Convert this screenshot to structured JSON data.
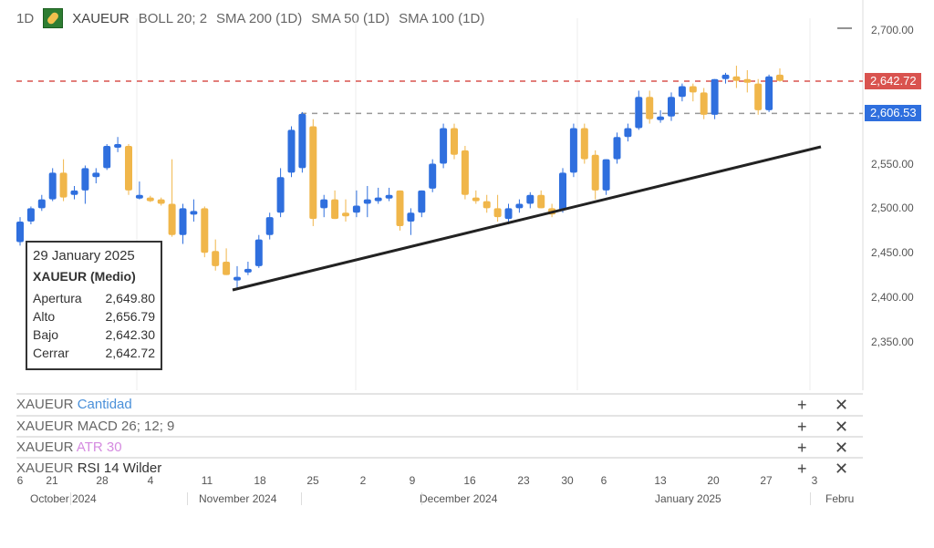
{
  "header": {
    "interval": "1D",
    "symbol": "XAUEUR",
    "indicators": [
      "BOLL 20; 2",
      "SMA 200 (1D)",
      "SMA 50 (1D)",
      "SMA 100 (1D)"
    ],
    "collapse_label": "—"
  },
  "tooltip": {
    "date": "29 January 2025",
    "series": "XAUEUR (Medio)",
    "rows": [
      {
        "label": "Apertura",
        "value": "2,649.80"
      },
      {
        "label": "Alto",
        "value": "2,656.79"
      },
      {
        "label": "Bajo",
        "value": "2,642.30"
      },
      {
        "label": "Cerrar",
        "value": "2,642.72"
      }
    ]
  },
  "price_badges": {
    "last": "2,642.72",
    "level": "2,606.53"
  },
  "panes": [
    {
      "symbol": "XAUEUR",
      "name": "Cantidad"
    },
    {
      "symbol": "XAUEUR",
      "name": "MACD 26; 12; 9"
    },
    {
      "symbol": "XAUEUR",
      "name": "ATR 30"
    },
    {
      "symbol": "XAUEUR",
      "name": "RSI 14 Wilder"
    }
  ],
  "pane_buttons": {
    "add": "+",
    "close": "✕"
  },
  "colors": {
    "up": "#2f6fde",
    "down": "#f0b64a",
    "last_line": "#d9534f",
    "level_line": "#999999",
    "badge_last": "#d9534f",
    "badge_level": "#2f6fde"
  },
  "chart_data": {
    "type": "candlestick",
    "yaxis": {
      "ticks": [
        "2,700.00",
        "2,550.00",
        "2,500.00",
        "2,450.00",
        "2,400.00",
        "2,350.00"
      ],
      "ylim": [
        2350,
        2700
      ]
    },
    "xaxis": {
      "day_ticks": [
        "6",
        "21",
        "28",
        "4",
        "11",
        "18",
        "25",
        "2",
        "9",
        "16",
        "23",
        "30",
        "6",
        "13",
        "20",
        "27",
        "3"
      ],
      "months": [
        "October 2024",
        "November 2024",
        "December 2024",
        "January 2025",
        "Febru"
      ]
    },
    "horizontal_lines": [
      2642.72,
      2606.53
    ],
    "trendline": {
      "from": 2410,
      "to": 2567
    },
    "ohlc": [
      [
        2462,
        2490,
        2458,
        2485
      ],
      [
        2485,
        2502,
        2482,
        2500
      ],
      [
        2500,
        2515,
        2497,
        2510
      ],
      [
        2510,
        2545,
        2508,
        2540
      ],
      [
        2540,
        2555,
        2508,
        2512
      ],
      [
        2515,
        2525,
        2510,
        2520
      ],
      [
        2520,
        2548,
        2505,
        2545
      ],
      [
        2535,
        2545,
        2528,
        2540
      ],
      [
        2545,
        2572,
        2543,
        2570
      ],
      [
        2568,
        2580,
        2563,
        2572
      ],
      [
        2570,
        2572,
        2515,
        2520
      ],
      [
        2512,
        2530,
        2510,
        2515
      ],
      [
        2512,
        2514,
        2507,
        2510
      ],
      [
        2510,
        2512,
        2503,
        2505
      ],
      [
        2505,
        2555,
        2468,
        2470
      ],
      [
        2470,
        2505,
        2460,
        2500
      ],
      [
        2495,
        2510,
        2485,
        2497
      ],
      [
        2500,
        2502,
        2445,
        2450
      ],
      [
        2452,
        2465,
        2430,
        2435
      ],
      [
        2440,
        2455,
        2425,
        2425
      ],
      [
        2422,
        2435,
        2410,
        2423
      ],
      [
        2430,
        2440,
        2425,
        2432
      ],
      [
        2435,
        2470,
        2433,
        2465
      ],
      [
        2470,
        2495,
        2465,
        2490
      ],
      [
        2495,
        2545,
        2490,
        2535
      ],
      [
        2540,
        2592,
        2535,
        2588
      ],
      [
        2545,
        2608,
        2540,
        2606
      ],
      [
        2592,
        2600,
        2480,
        2488
      ],
      [
        2500,
        2515,
        2490,
        2510
      ],
      [
        2510,
        2520,
        2488,
        2488
      ],
      [
        2495,
        2510,
        2485,
        2492
      ],
      [
        2495,
        2520,
        2490,
        2503
      ],
      [
        2505,
        2525,
        2490,
        2510
      ],
      [
        2510,
        2523,
        2505,
        2512
      ],
      [
        2512,
        2523,
        2508,
        2515
      ],
      [
        2520,
        2520,
        2475,
        2480
      ],
      [
        2485,
        2500,
        2470,
        2495
      ],
      [
        2495,
        2520,
        2490,
        2520
      ],
      [
        2522,
        2555,
        2518,
        2550
      ],
      [
        2550,
        2595,
        2545,
        2590
      ],
      [
        2590,
        2595,
        2555,
        2560
      ],
      [
        2565,
        2570,
        2510,
        2515
      ],
      [
        2512,
        2520,
        2505,
        2508
      ],
      [
        2508,
        2515,
        2495,
        2500
      ],
      [
        2500,
        2515,
        2485,
        2490
      ],
      [
        2488,
        2505,
        2482,
        2500
      ],
      [
        2500,
        2510,
        2495,
        2505
      ],
      [
        2505,
        2518,
        2500,
        2515
      ],
      [
        2515,
        2520,
        2500,
        2500
      ],
      [
        2500,
        2505,
        2490,
        2493
      ],
      [
        2498,
        2545,
        2495,
        2540
      ],
      [
        2540,
        2595,
        2535,
        2590
      ],
      [
        2590,
        2595,
        2550,
        2555
      ],
      [
        2560,
        2565,
        2510,
        2520
      ],
      [
        2520,
        2555,
        2515,
        2555
      ],
      [
        2555,
        2585,
        2550,
        2580
      ],
      [
        2580,
        2595,
        2575,
        2590
      ],
      [
        2590,
        2632,
        2588,
        2625
      ],
      [
        2625,
        2632,
        2595,
        2600
      ],
      [
        2600,
        2610,
        2596,
        2603
      ],
      [
        2603,
        2630,
        2598,
        2625
      ],
      [
        2625,
        2640,
        2620,
        2637
      ],
      [
        2637,
        2640,
        2620,
        2630
      ],
      [
        2630,
        2635,
        2600,
        2605
      ],
      [
        2605,
        2645,
        2600,
        2645
      ],
      [
        2645,
        2652,
        2640,
        2650
      ],
      [
        2648,
        2660,
        2635,
        2643
      ],
      [
        2645,
        2655,
        2630,
        2642
      ],
      [
        2640,
        2645,
        2605,
        2610
      ],
      [
        2610,
        2650,
        2608,
        2648
      ],
      [
        2650,
        2657,
        2642,
        2643
      ]
    ]
  }
}
